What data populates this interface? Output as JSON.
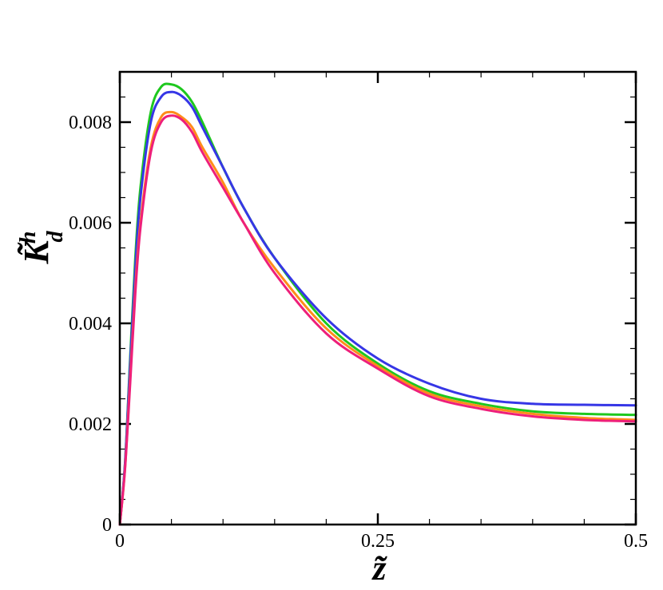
{
  "chart_data": {
    "type": "line",
    "title": "",
    "xlabel": "z̃",
    "ylabel": {
      "main": "K̃",
      "superscript": "h",
      "subscript": "d"
    },
    "xlim": [
      0,
      0.5
    ],
    "ylim": [
      0,
      0.009
    ],
    "x_ticks": [
      {
        "value": 0,
        "label": "0"
      },
      {
        "value": 0.25,
        "label": "0.25"
      },
      {
        "value": 0.5,
        "label": "0.5"
      }
    ],
    "y_ticks": [
      {
        "value": 0,
        "label": "0"
      },
      {
        "value": 0.002,
        "label": "0.002"
      },
      {
        "value": 0.004,
        "label": "0.004"
      },
      {
        "value": 0.006,
        "label": "0.006"
      },
      {
        "value": 0.008,
        "label": "0.008"
      }
    ],
    "grid": false,
    "legend": "none",
    "series": [
      {
        "color": "#1ec81e",
        "x": [
          0,
          0.005,
          0.01,
          0.015,
          0.02,
          0.03,
          0.04,
          0.05,
          0.06,
          0.07,
          0.08,
          0.1,
          0.12,
          0.15,
          0.2,
          0.25,
          0.3,
          0.35,
          0.4,
          0.45,
          0.5
        ],
        "y": [
          0,
          0.0012,
          0.0033,
          0.0053,
          0.0067,
          0.0082,
          0.0087,
          0.00875,
          0.00865,
          0.0084,
          0.008,
          0.0071,
          0.0063,
          0.0053,
          0.004,
          0.0032,
          0.00265,
          0.0024,
          0.00225,
          0.0022,
          0.00218
        ]
      },
      {
        "color": "#3636e6",
        "x": [
          0,
          0.005,
          0.01,
          0.015,
          0.02,
          0.03,
          0.04,
          0.05,
          0.06,
          0.07,
          0.08,
          0.1,
          0.12,
          0.15,
          0.2,
          0.25,
          0.3,
          0.35,
          0.4,
          0.45,
          0.5
        ],
        "y": [
          0,
          0.0012,
          0.0032,
          0.0051,
          0.0065,
          0.008,
          0.0085,
          0.0086,
          0.00852,
          0.0083,
          0.0079,
          0.0071,
          0.0063,
          0.0053,
          0.0041,
          0.0033,
          0.0028,
          0.0025,
          0.0024,
          0.00238,
          0.00237
        ]
      },
      {
        "color": "#ff8c1a",
        "x": [
          0,
          0.005,
          0.01,
          0.015,
          0.02,
          0.03,
          0.04,
          0.05,
          0.06,
          0.07,
          0.08,
          0.1,
          0.12,
          0.15,
          0.2,
          0.25,
          0.3,
          0.35,
          0.4,
          0.45,
          0.5
        ],
        "y": [
          0,
          0.0011,
          0.0029,
          0.0047,
          0.006,
          0.0075,
          0.0081,
          0.0082,
          0.0081,
          0.0079,
          0.0075,
          0.0068,
          0.006,
          0.0051,
          0.0039,
          0.00315,
          0.0026,
          0.00235,
          0.0022,
          0.00212,
          0.00208
        ]
      },
      {
        "color": "#ee1f7a",
        "x": [
          0,
          0.005,
          0.01,
          0.015,
          0.02,
          0.03,
          0.04,
          0.05,
          0.06,
          0.07,
          0.08,
          0.1,
          0.12,
          0.15,
          0.2,
          0.25,
          0.3,
          0.35,
          0.4,
          0.45,
          0.5
        ],
        "y": [
          0,
          0.0011,
          0.0028,
          0.0046,
          0.0059,
          0.0074,
          0.008,
          0.00813,
          0.00805,
          0.0078,
          0.0074,
          0.0067,
          0.006,
          0.005,
          0.0038,
          0.0031,
          0.00255,
          0.0023,
          0.00215,
          0.00208,
          0.00205
        ]
      }
    ]
  }
}
